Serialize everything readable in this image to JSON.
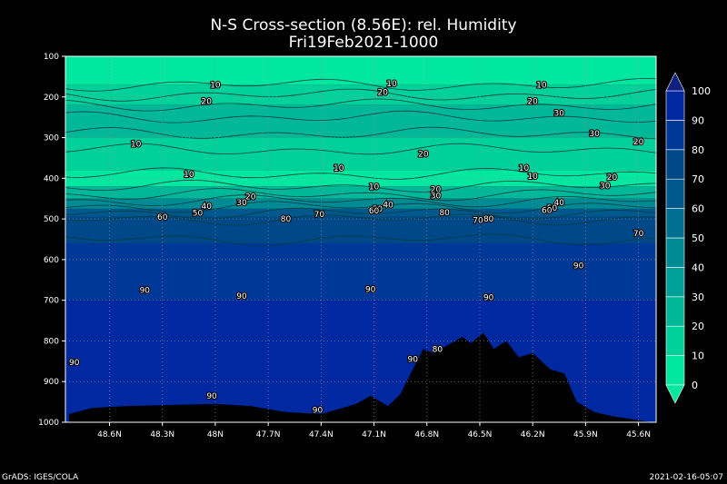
{
  "title_line1": "N-S Cross-section (8.56E): rel. Humidity",
  "title_line2": "Fri19Feb2021-1000",
  "footer_left": "GrADS: IGES/COLA",
  "footer_right": "2021-02-16-05:07",
  "colors": {
    "background": "#000000",
    "grid": "#888888",
    "terrain": "#000000",
    "levels": [
      {
        "min": 0,
        "max": 10,
        "color": "#00e8a0"
      },
      {
        "min": 10,
        "max": 20,
        "color": "#00d09a"
      },
      {
        "min": 20,
        "max": 30,
        "color": "#00b898"
      },
      {
        "min": 30,
        "max": 40,
        "color": "#00a096"
      },
      {
        "min": 40,
        "max": 50,
        "color": "#008a94"
      },
      {
        "min": 50,
        "max": 60,
        "color": "#007090"
      },
      {
        "min": 60,
        "max": 70,
        "color": "#00588c"
      },
      {
        "min": 70,
        "max": 80,
        "color": "#004888"
      },
      {
        "min": 80,
        "max": 90,
        "color": "#003898"
      },
      {
        "min": 90,
        "max": 100,
        "color": "#0028a0"
      },
      {
        "min": 100,
        "max": 110,
        "color": "#102080"
      }
    ]
  },
  "chart_data": {
    "type": "heatmap",
    "title": "N-S Cross-section (8.56E): rel. Humidity",
    "subtitle": "Fri19Feb2021-1000",
    "xlabel": "",
    "ylabel": "",
    "x_ticks": [
      "48.6N",
      "48.3N",
      "48N",
      "47.7N",
      "47.4N",
      "47.1N",
      "46.8N",
      "46.5N",
      "46.2N",
      "45.9N",
      "45.6N"
    ],
    "x_tick_values": [
      48.6,
      48.3,
      48.0,
      47.7,
      47.4,
      47.1,
      46.8,
      46.5,
      46.2,
      45.9,
      45.6
    ],
    "xlim": [
      48.85,
      45.5
    ],
    "y_ticks": [
      100,
      200,
      300,
      400,
      500,
      600,
      700,
      800,
      900,
      1000
    ],
    "ylim": [
      100,
      1000
    ],
    "y_reversed": true,
    "grid": true,
    "colorbar": {
      "ticks": [
        0,
        10,
        20,
        30,
        40,
        50,
        60,
        70,
        80,
        90,
        100
      ],
      "placement": "right",
      "extend": "both"
    },
    "contour_labels": [
      {
        "lat": 48.0,
        "p": 170,
        "v": "10"
      },
      {
        "lat": 47.0,
        "p": 167,
        "v": "10"
      },
      {
        "lat": 46.15,
        "p": 170,
        "v": "10"
      },
      {
        "lat": 48.05,
        "p": 210,
        "v": "20"
      },
      {
        "lat": 47.05,
        "p": 188,
        "v": "20"
      },
      {
        "lat": 46.2,
        "p": 210,
        "v": "20"
      },
      {
        "lat": 46.05,
        "p": 240,
        "v": "30"
      },
      {
        "lat": 45.85,
        "p": 290,
        "v": "30"
      },
      {
        "lat": 45.6,
        "p": 310,
        "v": "20"
      },
      {
        "lat": 48.45,
        "p": 315,
        "v": "10"
      },
      {
        "lat": 46.82,
        "p": 340,
        "v": "20"
      },
      {
        "lat": 48.15,
        "p": 390,
        "v": "10"
      },
      {
        "lat": 47.3,
        "p": 375,
        "v": "10"
      },
      {
        "lat": 46.25,
        "p": 375,
        "v": "10"
      },
      {
        "lat": 46.2,
        "p": 395,
        "v": "10"
      },
      {
        "lat": 45.75,
        "p": 397,
        "v": "20"
      },
      {
        "lat": 45.79,
        "p": 418,
        "v": "30"
      },
      {
        "lat": 47.1,
        "p": 420,
        "v": "10"
      },
      {
        "lat": 46.75,
        "p": 427,
        "v": "20"
      },
      {
        "lat": 46.75,
        "p": 443,
        "v": "30"
      },
      {
        "lat": 47.8,
        "p": 445,
        "v": "20"
      },
      {
        "lat": 47.85,
        "p": 460,
        "v": "30"
      },
      {
        "lat": 48.05,
        "p": 468,
        "v": "40"
      },
      {
        "lat": 48.1,
        "p": 485,
        "v": "50"
      },
      {
        "lat": 48.3,
        "p": 495,
        "v": "60"
      },
      {
        "lat": 47.02,
        "p": 465,
        "v": "40"
      },
      {
        "lat": 47.08,
        "p": 475,
        "v": "50"
      },
      {
        "lat": 47.1,
        "p": 480,
        "v": "60"
      },
      {
        "lat": 46.05,
        "p": 460,
        "v": "40"
      },
      {
        "lat": 46.09,
        "p": 473,
        "v": "50"
      },
      {
        "lat": 46.12,
        "p": 478,
        "v": "60"
      },
      {
        "lat": 47.6,
        "p": 500,
        "v": "80"
      },
      {
        "lat": 47.41,
        "p": 489,
        "v": "70"
      },
      {
        "lat": 46.7,
        "p": 484,
        "v": "80"
      },
      {
        "lat": 46.51,
        "p": 503,
        "v": "70"
      },
      {
        "lat": 46.45,
        "p": 500,
        "v": "80"
      },
      {
        "lat": 45.6,
        "p": 535,
        "v": "70"
      },
      {
        "lat": 48.4,
        "p": 675,
        "v": "90"
      },
      {
        "lat": 47.85,
        "p": 690,
        "v": "90"
      },
      {
        "lat": 47.12,
        "p": 673,
        "v": "90"
      },
      {
        "lat": 46.45,
        "p": 693,
        "v": "90"
      },
      {
        "lat": 45.94,
        "p": 615,
        "v": "90"
      },
      {
        "lat": 48.8,
        "p": 853,
        "v": "90"
      },
      {
        "lat": 46.88,
        "p": 845,
        "v": "90"
      },
      {
        "lat": 46.74,
        "p": 820,
        "v": "80"
      },
      {
        "lat": 48.02,
        "p": 935,
        "v": "90"
      },
      {
        "lat": 47.42,
        "p": 970,
        "v": "90"
      }
    ],
    "terrain_surface": [
      {
        "lat": 48.83,
        "p": 980
      },
      {
        "lat": 48.7,
        "p": 965
      },
      {
        "lat": 48.5,
        "p": 960
      },
      {
        "lat": 48.3,
        "p": 958
      },
      {
        "lat": 48.0,
        "p": 955
      },
      {
        "lat": 47.8,
        "p": 960
      },
      {
        "lat": 47.6,
        "p": 975
      },
      {
        "lat": 47.4,
        "p": 980
      },
      {
        "lat": 47.2,
        "p": 955
      },
      {
        "lat": 47.12,
        "p": 935
      },
      {
        "lat": 47.02,
        "p": 960
      },
      {
        "lat": 46.95,
        "p": 930
      },
      {
        "lat": 46.88,
        "p": 870
      },
      {
        "lat": 46.82,
        "p": 820
      },
      {
        "lat": 46.76,
        "p": 830
      },
      {
        "lat": 46.68,
        "p": 810
      },
      {
        "lat": 46.6,
        "p": 790
      },
      {
        "lat": 46.55,
        "p": 805
      },
      {
        "lat": 46.48,
        "p": 780
      },
      {
        "lat": 46.42,
        "p": 820
      },
      {
        "lat": 46.35,
        "p": 800
      },
      {
        "lat": 46.28,
        "p": 840
      },
      {
        "lat": 46.2,
        "p": 830
      },
      {
        "lat": 46.1,
        "p": 870
      },
      {
        "lat": 46.02,
        "p": 880
      },
      {
        "lat": 45.95,
        "p": 950
      },
      {
        "lat": 45.85,
        "p": 975
      },
      {
        "lat": 45.75,
        "p": 985
      },
      {
        "lat": 45.6,
        "p": 995
      },
      {
        "lat": 45.52,
        "p": 1000
      }
    ]
  }
}
